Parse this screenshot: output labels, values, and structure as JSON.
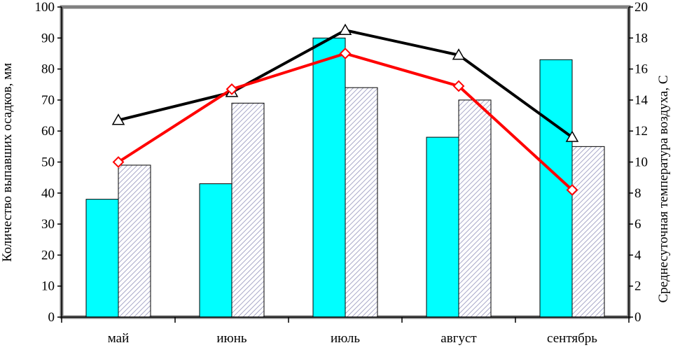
{
  "chart_data": {
    "type": "bar",
    "categories": [
      "май",
      "июнь",
      "июль",
      "август",
      "сентябрь"
    ],
    "ylabel": "Количество выпавших осадков, мм",
    "y2label": "Среднесуточная температура воздуха, С",
    "ylim": [
      0,
      100
    ],
    "y2lim": [
      0,
      20
    ],
    "yticks": [
      "0",
      "10",
      "20",
      "30",
      "40",
      "50",
      "60",
      "70",
      "80",
      "90",
      "100"
    ],
    "y2ticks": [
      "0",
      "2",
      "4",
      "6",
      "8",
      "10",
      "12",
      "14",
      "16",
      "18",
      "20"
    ],
    "grid": false,
    "series": [
      {
        "axis": "left",
        "style": "bar",
        "color": "#00ffff",
        "values": [
          38,
          43,
          90,
          58,
          83
        ]
      },
      {
        "axis": "left",
        "style": "bar-hatched",
        "color": "#b0b0d0",
        "values": [
          49,
          69,
          74,
          70,
          55
        ]
      },
      {
        "axis": "right",
        "style": "line-triangle",
        "color": "#000000",
        "values": [
          12.7,
          14.5,
          18.5,
          16.9,
          11.6
        ]
      },
      {
        "axis": "right",
        "style": "line-diamond",
        "color": "#ff0000",
        "values": [
          10.0,
          14.7,
          17.0,
          14.9,
          8.2
        ]
      }
    ]
  }
}
